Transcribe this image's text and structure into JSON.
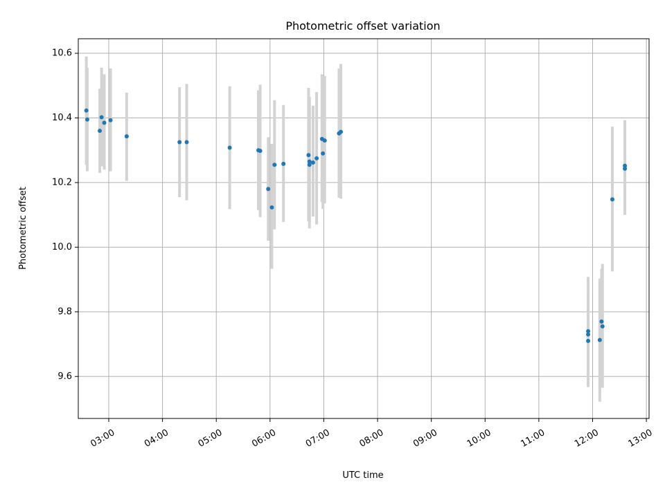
{
  "chart_data": {
    "type": "scatter",
    "title": "Photometric offset variation",
    "xlabel": "UTC time",
    "ylabel": "Photometric offset",
    "x_unit": "UTC time (HH:MM)",
    "xlim": [
      "02:26",
      "13:03"
    ],
    "ylim": [
      9.47,
      10.645
    ],
    "grid": true,
    "x_ticks": [
      "03:00",
      "04:00",
      "05:00",
      "06:00",
      "07:00",
      "08:00",
      "09:00",
      "10:00",
      "11:00",
      "12:00",
      "13:00"
    ],
    "y_ticks": [
      "9.6",
      "9.8",
      "10.0",
      "10.2",
      "10.4",
      "10.6"
    ],
    "colors": {
      "points": "#1f77b4",
      "error_bars": "#d3d3d3",
      "grid": "#b0b0b0"
    },
    "points": [
      {
        "x": "02:35",
        "y": 10.423,
        "err_low": 10.255,
        "err_high": 10.59
      },
      {
        "x": "02:36",
        "y": 10.395,
        "err_low": 10.235,
        "err_high": 10.555
      },
      {
        "x": "02:50",
        "y": 10.36,
        "err_low": 10.23,
        "err_high": 10.49
      },
      {
        "x": "02:52",
        "y": 10.402,
        "err_low": 10.25,
        "err_high": 10.555
      },
      {
        "x": "02:55",
        "y": 10.385,
        "err_low": 10.24,
        "err_high": 10.535
      },
      {
        "x": "03:02",
        "y": 10.393,
        "err_low": 10.235,
        "err_high": 10.553
      },
      {
        "x": "03:20",
        "y": 10.343,
        "err_low": 10.205,
        "err_high": 10.478
      },
      {
        "x": "04:19",
        "y": 10.325,
        "err_low": 10.155,
        "err_high": 10.495
      },
      {
        "x": "04:27",
        "y": 10.325,
        "err_low": 10.145,
        "err_high": 10.505
      },
      {
        "x": "05:15",
        "y": 10.308,
        "err_low": 10.118,
        "err_high": 10.498
      },
      {
        "x": "05:47",
        "y": 10.3,
        "err_low": 10.115,
        "err_high": 10.485
      },
      {
        "x": "05:49",
        "y": 10.298,
        "err_low": 10.093,
        "err_high": 10.503
      },
      {
        "x": "05:58",
        "y": 10.18,
        "err_low": 10.02,
        "err_high": 10.34
      },
      {
        "x": "06:02",
        "y": 10.123,
        "err_low": 9.933,
        "err_high": 10.32
      },
      {
        "x": "06:05",
        "y": 10.255,
        "err_low": 10.055,
        "err_high": 10.455
      },
      {
        "x": "06:15",
        "y": 10.258,
        "err_low": 10.078,
        "err_high": 10.44
      },
      {
        "x": "06:43",
        "y": 10.285,
        "err_low": 10.08,
        "err_high": 10.493
      },
      {
        "x": "06:44",
        "y": 10.265,
        "err_low": 10.058,
        "err_high": 10.465
      },
      {
        "x": "06:44",
        "y": 10.255,
        "err_low": 10.078,
        "err_high": 10.435
      },
      {
        "x": "06:48",
        "y": 10.262,
        "err_low": 10.095,
        "err_high": 10.438
      },
      {
        "x": "06:52",
        "y": 10.275,
        "err_low": 10.07,
        "err_high": 10.48
      },
      {
        "x": "06:58",
        "y": 10.335,
        "err_low": 10.14,
        "err_high": 10.535
      },
      {
        "x": "06:59",
        "y": 10.29,
        "err_low": 10.118,
        "err_high": 10.465
      },
      {
        "x": "07:01",
        "y": 10.33,
        "err_low": 10.135,
        "err_high": 10.53
      },
      {
        "x": "07:17",
        "y": 10.352,
        "err_low": 10.153,
        "err_high": 10.553
      },
      {
        "x": "07:19",
        "y": 10.357,
        "err_low": 10.15,
        "err_high": 10.567
      },
      {
        "x": "11:55",
        "y": 9.74,
        "err_low": 9.573,
        "err_high": 9.908
      },
      {
        "x": "11:55",
        "y": 9.73,
        "err_low": 9.567,
        "err_high": 9.893
      },
      {
        "x": "11:55",
        "y": 9.71,
        "err_low": 9.568,
        "err_high": 9.852
      },
      {
        "x": "12:08",
        "y": 9.713,
        "err_low": 9.522,
        "err_high": 9.903
      },
      {
        "x": "12:10",
        "y": 9.77,
        "err_low": 9.567,
        "err_high": 9.933
      },
      {
        "x": "12:11",
        "y": 9.755,
        "err_low": 9.565,
        "err_high": 9.948
      },
      {
        "x": "12:22",
        "y": 10.148,
        "err_low": 9.925,
        "err_high": 10.373
      },
      {
        "x": "12:36",
        "y": 10.252,
        "err_low": 10.105,
        "err_high": 10.393
      },
      {
        "x": "12:36",
        "y": 10.243,
        "err_low": 10.1,
        "err_high": 10.385
      }
    ]
  }
}
